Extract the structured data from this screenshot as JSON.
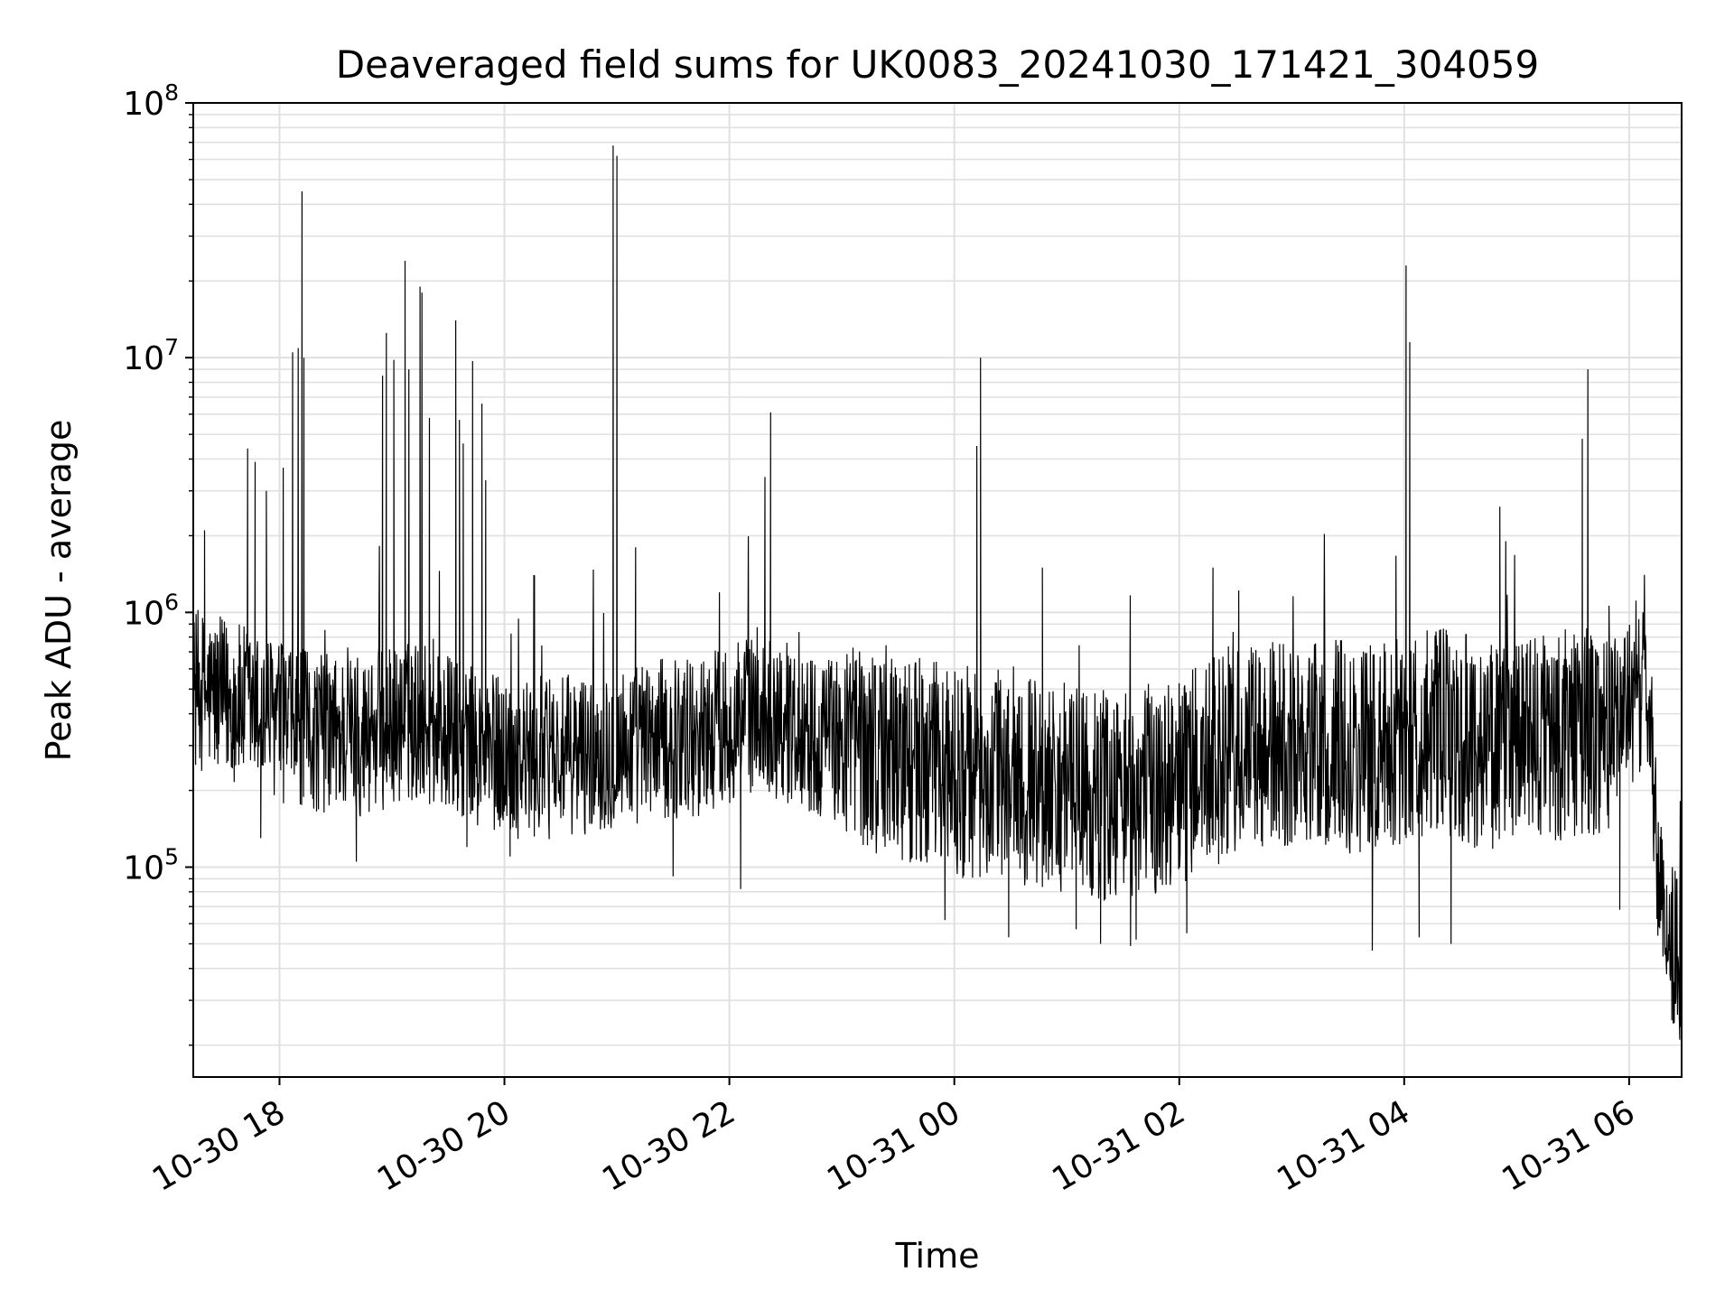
{
  "chart_data": {
    "type": "line",
    "title": "Deaveraged field sums for UK0083_20241030_171421_304059",
    "xlabel": "Time",
    "ylabel": "Peak ADU - average",
    "yscale": "log",
    "xlim": [
      "2024-10-30 17:14",
      "2024-10-31 06:28"
    ],
    "ylim": [
      15000,
      100000000
    ],
    "grid": true,
    "colors": {
      "line": "#000000",
      "grid": "#e0e0e0",
      "axes": "#000000"
    },
    "x_ticks": [
      {
        "value": "2024-10-30 18:00",
        "label": "10-30 18"
      },
      {
        "value": "2024-10-30 20:00",
        "label": "10-30 20"
      },
      {
        "value": "2024-10-30 22:00",
        "label": "10-30 22"
      },
      {
        "value": "2024-10-31 00:00",
        "label": "10-31 00"
      },
      {
        "value": "2024-10-31 02:00",
        "label": "10-31 02"
      },
      {
        "value": "2024-10-31 04:00",
        "label": "10-31 04"
      },
      {
        "value": "2024-10-31 06:00",
        "label": "10-31 06"
      }
    ],
    "y_ticks": [
      {
        "value": 100000,
        "base": "10",
        "exp": "5"
      },
      {
        "value": 1000000,
        "base": "10",
        "exp": "6"
      },
      {
        "value": 10000000,
        "base": "10",
        "exp": "7"
      },
      {
        "value": 100000000,
        "base": "10",
        "exp": "8"
      }
    ],
    "series": [
      {
        "color": "#000000",
        "baseline": [
          [
            "2024-10-30 17:14",
            500000
          ],
          [
            "2024-10-30 17:45",
            420000
          ],
          [
            "2024-10-30 18:15",
            340000
          ],
          [
            "2024-10-30 18:45",
            330000
          ],
          [
            "2024-10-30 19:15",
            380000
          ],
          [
            "2024-10-30 19:45",
            290000
          ],
          [
            "2024-10-30 20:15",
            260000
          ],
          [
            "2024-10-30 20:45",
            280000
          ],
          [
            "2024-10-30 21:15",
            310000
          ],
          [
            "2024-10-30 21:45",
            330000
          ],
          [
            "2024-10-30 22:15",
            420000
          ],
          [
            "2024-10-30 22:45",
            330000
          ],
          [
            "2024-10-30 23:15",
            300000
          ],
          [
            "2024-10-30 23:45",
            250000
          ],
          [
            "2024-10-31 00:15",
            230000
          ],
          [
            "2024-10-31 00:45",
            220000
          ],
          [
            "2024-10-31 01:15",
            190000
          ],
          [
            "2024-10-31 01:45",
            200000
          ],
          [
            "2024-10-31 02:15",
            250000
          ],
          [
            "2024-10-31 02:45",
            290000
          ],
          [
            "2024-10-31 03:15",
            300000
          ],
          [
            "2024-10-31 03:45",
            290000
          ],
          [
            "2024-10-31 04:15",
            340000
          ],
          [
            "2024-10-31 04:45",
            300000
          ],
          [
            "2024-10-31 05:15",
            320000
          ],
          [
            "2024-10-31 05:45",
            350000
          ],
          [
            "2024-10-31 06:10",
            500000
          ],
          [
            "2024-10-31 06:17",
            70000
          ],
          [
            "2024-10-31 06:28",
            40000
          ]
        ],
        "peaks": [
          [
            "2024-10-30 17:20",
            2100000
          ],
          [
            "2024-10-30 17:43",
            4400000
          ],
          [
            "2024-10-30 17:47",
            3900000
          ],
          [
            "2024-10-30 17:53",
            3000000
          ],
          [
            "2024-10-30 18:02",
            3700000
          ],
          [
            "2024-10-30 18:07",
            10500000
          ],
          [
            "2024-10-30 18:10",
            10900000
          ],
          [
            "2024-10-30 18:12",
            45000000
          ],
          [
            "2024-10-30 18:13",
            10000000
          ],
          [
            "2024-10-30 18:55",
            8500000
          ],
          [
            "2024-10-30 18:57",
            12500000
          ],
          [
            "2024-10-30 19:01",
            9800000
          ],
          [
            "2024-10-30 19:07",
            24000000
          ],
          [
            "2024-10-30 19:09",
            9000000
          ],
          [
            "2024-10-30 19:15",
            19000000
          ],
          [
            "2024-10-30 19:16",
            18000000
          ],
          [
            "2024-10-30 19:20",
            5800000
          ],
          [
            "2024-10-30 19:34",
            14000000
          ],
          [
            "2024-10-30 19:36",
            5700000
          ],
          [
            "2024-10-30 19:38",
            4600000
          ],
          [
            "2024-10-30 19:43",
            9700000
          ],
          [
            "2024-10-30 19:48",
            6600000
          ],
          [
            "2024-10-30 19:50",
            3300000
          ],
          [
            "2024-10-30 20:16",
            1400000
          ],
          [
            "2024-10-30 20:58",
            68000000
          ],
          [
            "2024-10-30 21:00",
            62000000
          ],
          [
            "2024-10-30 21:10",
            1800000
          ],
          [
            "2024-10-30 22:19",
            3400000
          ],
          [
            "2024-10-30 22:22",
            6100000
          ],
          [
            "2024-10-31 00:12",
            4500000
          ],
          [
            "2024-10-31 00:14",
            10000000
          ],
          [
            "2024-10-31 00:47",
            1500000
          ],
          [
            "2024-10-31 02:18",
            1500000
          ],
          [
            "2024-10-31 04:01",
            23000000
          ],
          [
            "2024-10-31 04:03",
            11500000
          ],
          [
            "2024-10-31 04:51",
            2600000
          ],
          [
            "2024-10-31 05:35",
            4800000
          ],
          [
            "2024-10-31 05:38",
            9000000
          ]
        ],
        "dips": [
          [
            "2024-10-30 17:50",
            130000
          ],
          [
            "2024-10-30 18:41",
            105000
          ],
          [
            "2024-10-30 19:40",
            120000
          ],
          [
            "2024-10-30 20:03",
            110000
          ],
          [
            "2024-10-30 21:30",
            92000
          ],
          [
            "2024-10-30 22:06",
            82000
          ],
          [
            "2024-10-30 23:55",
            62000
          ],
          [
            "2024-10-31 00:29",
            53000
          ],
          [
            "2024-10-31 01:05",
            57000
          ],
          [
            "2024-10-31 01:18",
            50000
          ],
          [
            "2024-10-31 01:34",
            49000
          ],
          [
            "2024-10-31 01:37",
            52000
          ],
          [
            "2024-10-31 02:04",
            55000
          ],
          [
            "2024-10-31 03:43",
            47000
          ],
          [
            "2024-10-31 04:08",
            53000
          ],
          [
            "2024-10-31 04:25",
            50000
          ],
          [
            "2024-10-31 05:55",
            68000
          ],
          [
            "2024-10-31 06:20",
            38000
          ],
          [
            "2024-10-31 06:27",
            21000
          ]
        ]
      }
    ]
  }
}
